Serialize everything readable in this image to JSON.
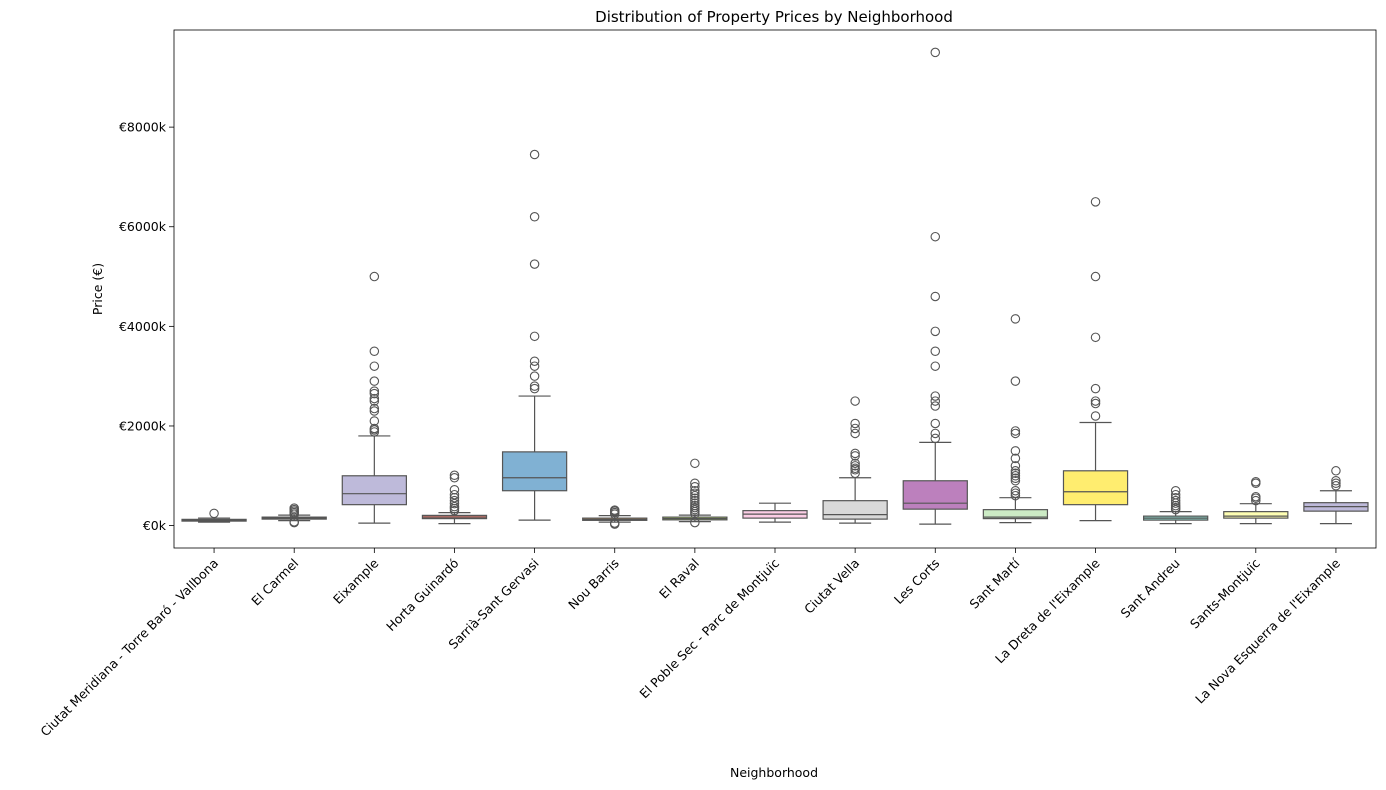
{
  "chart_data": {
    "type": "box",
    "title": "Distribution of Property Prices by Neighborhood",
    "xlabel": "Neighborhood",
    "ylabel": "Price (€)",
    "ylim": [
      -450,
      9950
    ],
    "yticks": [
      {
        "value": 0,
        "label": "€0k"
      },
      {
        "value": 2000,
        "label": "€2000k"
      },
      {
        "value": 4000,
        "label": "€4000k"
      },
      {
        "value": 6000,
        "label": "€6000k"
      },
      {
        "value": 8000,
        "label": "€8000k"
      }
    ],
    "value_unit": "thousand €",
    "grid": false,
    "legend": "none",
    "edge_color": "#555555",
    "series": [
      {
        "category": "Ciutat Meridiana - Torre Baró - Vallbona",
        "color": "#8dd3c7",
        "whislo": 70,
        "q1": 90,
        "median": 105,
        "q3": 125,
        "whishi": 150,
        "fliers": [
          245
        ]
      },
      {
        "category": "El Carmel",
        "color": "#ffffb3",
        "whislo": 100,
        "q1": 130,
        "median": 150,
        "q3": 170,
        "whishi": 210,
        "fliers": [
          60,
          75,
          230,
          260,
          290,
          320,
          350
        ]
      },
      {
        "category": "Eixample",
        "color": "#bebada",
        "whislo": 50,
        "q1": 420,
        "median": 640,
        "q3": 1000,
        "whishi": 1800,
        "fliers": [
          1880,
          1920,
          1950,
          2100,
          2300,
          2350,
          2500,
          2550,
          2650,
          2700,
          2900,
          3200,
          3500,
          5000
        ]
      },
      {
        "category": "Horta Guinardó",
        "color": "#fb8072",
        "whislo": 40,
        "q1": 140,
        "median": 170,
        "q3": 205,
        "whishi": 260,
        "fliers": [
          300,
          340,
          380,
          440,
          500,
          560,
          620,
          720,
          960,
          1010
        ]
      },
      {
        "category": "Sarrià-Sant Gervasi",
        "color": "#80b1d3",
        "whislo": 110,
        "q1": 700,
        "median": 960,
        "q3": 1480,
        "whishi": 2600,
        "fliers": [
          2750,
          2800,
          3000,
          3200,
          3300,
          3800,
          5250,
          6200,
          7450
        ]
      },
      {
        "category": "Nou Barris",
        "color": "#fdb462",
        "whislo": 70,
        "q1": 105,
        "median": 125,
        "q3": 150,
        "whishi": 200,
        "fliers": [
          30,
          50,
          230,
          260,
          290,
          310
        ]
      },
      {
        "category": "El Raval",
        "color": "#b3de69",
        "whislo": 80,
        "q1": 115,
        "median": 140,
        "q3": 170,
        "whishi": 210,
        "fliers": [
          60,
          240,
          280,
          320,
          360,
          400,
          450,
          500,
          550,
          600,
          650,
          700,
          780,
          850,
          1250
        ]
      },
      {
        "category": "El Poble Sec - Parc de Montjuïc",
        "color": "#fccde5",
        "whislo": 70,
        "q1": 150,
        "median": 230,
        "q3": 300,
        "whishi": 450,
        "fliers": []
      },
      {
        "category": "Ciutat Vella",
        "color": "#d9d9d9",
        "whislo": 50,
        "q1": 130,
        "median": 220,
        "q3": 500,
        "whishi": 960,
        "fliers": [
          1050,
          1120,
          1150,
          1200,
          1250,
          1400,
          1450,
          1850,
          1950,
          2050,
          2500
        ]
      },
      {
        "category": "Les Corts",
        "color": "#bc80bd",
        "whislo": 30,
        "q1": 330,
        "median": 450,
        "q3": 900,
        "whishi": 1670,
        "fliers": [
          1750,
          1850,
          2050,
          2400,
          2500,
          2600,
          3200,
          3500,
          3900,
          4600,
          5800,
          9500
        ]
      },
      {
        "category": "Sant Martí",
        "color": "#ccebc5",
        "whislo": 60,
        "q1": 140,
        "median": 170,
        "q3": 320,
        "whishi": 560,
        "fliers": [
          600,
          650,
          700,
          900,
          950,
          1000,
          1050,
          1100,
          1200,
          1350,
          1500,
          1850,
          1900,
          2900,
          4150
        ]
      },
      {
        "category": "La Dreta de l'Eixample",
        "color": "#ffed6f",
        "whislo": 100,
        "q1": 420,
        "median": 680,
        "q3": 1100,
        "whishi": 2070,
        "fliers": [
          2200,
          2450,
          2500,
          2750,
          3780,
          5000,
          6500
        ]
      },
      {
        "category": "Sant Andreu",
        "color": "#8dd3c7",
        "whislo": 40,
        "q1": 110,
        "median": 150,
        "q3": 190,
        "whishi": 280,
        "fliers": [
          320,
          360,
          400,
          450,
          500,
          560,
          620,
          700
        ]
      },
      {
        "category": "Sants-Montjuïc",
        "color": "#ffffb3",
        "whislo": 40,
        "q1": 150,
        "median": 190,
        "q3": 280,
        "whishi": 440,
        "fliers": [
          500,
          550,
          580,
          850,
          880
        ]
      },
      {
        "category": "La Nova Esquerra de l'Eixample",
        "color": "#bebada",
        "whislo": 40,
        "q1": 290,
        "median": 380,
        "q3": 460,
        "whishi": 700,
        "fliers": [
          800,
          850,
          900,
          1100
        ]
      }
    ]
  }
}
